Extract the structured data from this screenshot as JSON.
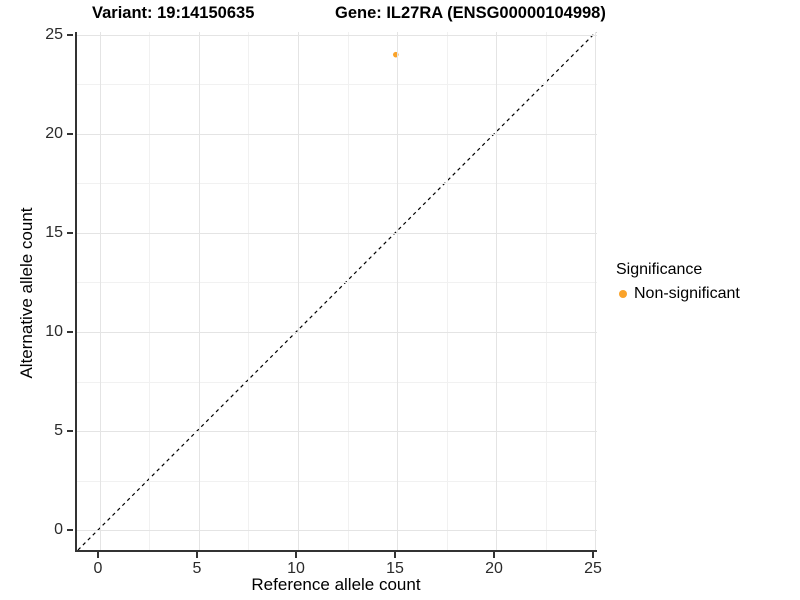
{
  "header": {
    "variant_title": "Variant: 19:14150635",
    "gene_title": "Gene: IL27RA (ENSG00000104998)"
  },
  "legend": {
    "title": "Significance",
    "items": [
      {
        "label": "Non-significant",
        "color": "#FAA32A"
      }
    ]
  },
  "colors": {
    "axis_line": "#333333",
    "tick_text": "#2b2b2b",
    "grid_major": "#e4e4e4",
    "grid_minor": "#f1f1f1",
    "identity_line": "#000000",
    "point": "#FAA32A"
  },
  "chart_data": {
    "type": "scatter",
    "title": "Variant: 19:14150635   Gene: IL27RA (ENSG00000104998)",
    "xlabel": "Reference allele count",
    "ylabel": "Alternative allele count",
    "xlim": [
      -1.16,
      25.2
    ],
    "ylim": [
      -1.11,
      25.15
    ],
    "x_ticks": [
      0,
      5,
      10,
      15,
      20,
      25
    ],
    "y_ticks": [
      0,
      5,
      10,
      15,
      20,
      25
    ],
    "x_minor_ticks": [
      2.5,
      7.5,
      12.5,
      17.5,
      22.5
    ],
    "y_minor_ticks": [
      2.5,
      7.5,
      12.5,
      17.5,
      22.5
    ],
    "grid": true,
    "legend_position": "right",
    "identity_line": {
      "equation": "y = x",
      "style": "dashed",
      "color": "#000000"
    },
    "series": [
      {
        "name": "Non-significant",
        "color": "#FAA32A",
        "points": [
          {
            "x": 15,
            "y": 24
          }
        ]
      }
    ]
  }
}
